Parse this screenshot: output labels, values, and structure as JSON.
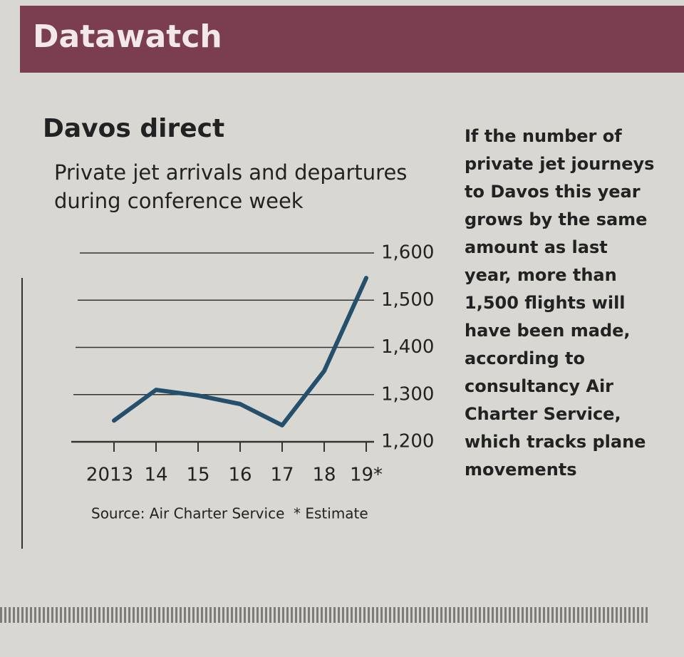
{
  "section": "Datawatch",
  "sidebar": "If the number of private jet journeys to Davos this year grows by the same amount as last year, more than 1,500 flights will have been made, according to consultancy Air Charter Service, which tracks plane movements",
  "chart_data": {
    "type": "line",
    "title": "Davos direct",
    "subtitle": "Private jet arrivals and departures during conference week",
    "categories": [
      "2013",
      "14",
      "15",
      "16",
      "17",
      "18",
      "19*"
    ],
    "values": [
      1245,
      1310,
      1298,
      1280,
      1235,
      1350,
      1547
    ],
    "color": "#24506e",
    "ylim": [
      1200,
      1600
    ],
    "yticks": [
      {
        "value": 1200,
        "label": "1,200"
      },
      {
        "value": 1300,
        "label": "1,300"
      },
      {
        "value": 1400,
        "label": "1,400"
      },
      {
        "value": 1500,
        "label": "1,500"
      },
      {
        "value": 1600,
        "label": "1,600"
      }
    ],
    "grid": true,
    "source": "Source: Air Charter Service",
    "note": "* Estimate"
  }
}
